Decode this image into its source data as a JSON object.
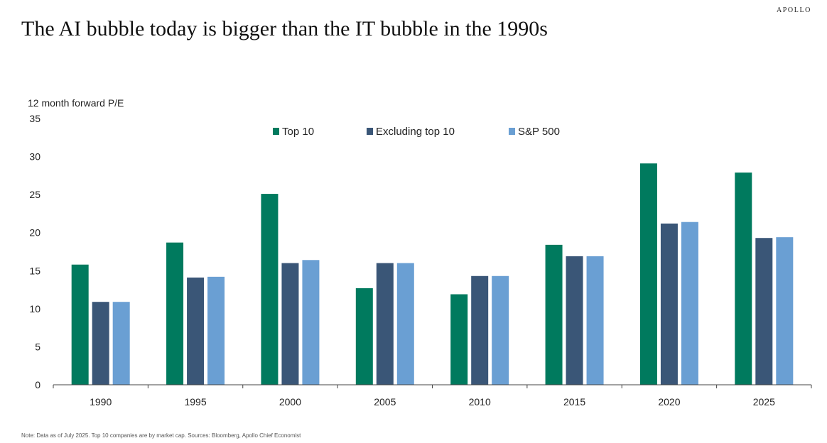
{
  "brand": "APOLLO",
  "footnote": "Note: Data as of July 2025. Top 10 companies are by market cap. Sources: Bloomberg, Apollo Chief Economist",
  "chart_data": {
    "type": "bar",
    "title": "The AI bubble today is bigger than the IT bubble in the 1990s",
    "ylabel": "12 month forward P/E",
    "xlabel": "",
    "categories": [
      "1990",
      "1995",
      "2000",
      "2005",
      "2010",
      "2015",
      "2020",
      "2025"
    ],
    "series": [
      {
        "name": "Top 10",
        "color": "#007a5e",
        "values": [
          15.8,
          18.7,
          25.1,
          12.7,
          11.9,
          18.4,
          29.1,
          27.9
        ]
      },
      {
        "name": "Excluding top 10",
        "color": "#3a5677",
        "values": [
          10.9,
          14.1,
          16.0,
          16.0,
          14.3,
          16.9,
          21.2,
          19.3
        ]
      },
      {
        "name": "S&P 500",
        "color": "#6a9fd3",
        "values": [
          10.9,
          14.2,
          16.4,
          16.0,
          14.3,
          16.9,
          21.4,
          19.4
        ]
      }
    ],
    "ylim": [
      0,
      35
    ],
    "yticks": [
      0,
      5,
      10,
      15,
      20,
      25,
      30,
      35
    ],
    "grid": false,
    "legend": "top-center"
  }
}
